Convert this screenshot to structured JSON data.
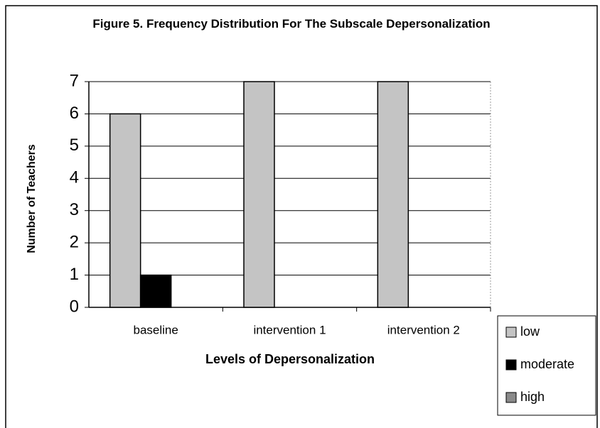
{
  "chart_data": {
    "type": "bar",
    "title": "Figure 5. Frequency Distribution For The Subscale Depersonalization",
    "x_label": "Levels of Depersonalization",
    "y_label": "Number of Teachers",
    "categories": [
      "baseline",
      "intervention 1",
      "intervention 2"
    ],
    "series": [
      {
        "name": "low",
        "color": "#c4c4c4",
        "values": [
          6,
          7,
          7
        ]
      },
      {
        "name": "moderate",
        "color": "#000000",
        "values": [
          1,
          0,
          0
        ]
      },
      {
        "name": "high",
        "color": "#8a8a8a",
        "values": [
          0,
          0,
          0
        ]
      }
    ],
    "ylim": [
      0,
      7
    ],
    "yticks": [
      0,
      1,
      2,
      3,
      4,
      5,
      6,
      7
    ],
    "grid": true,
    "legend": "right"
  }
}
